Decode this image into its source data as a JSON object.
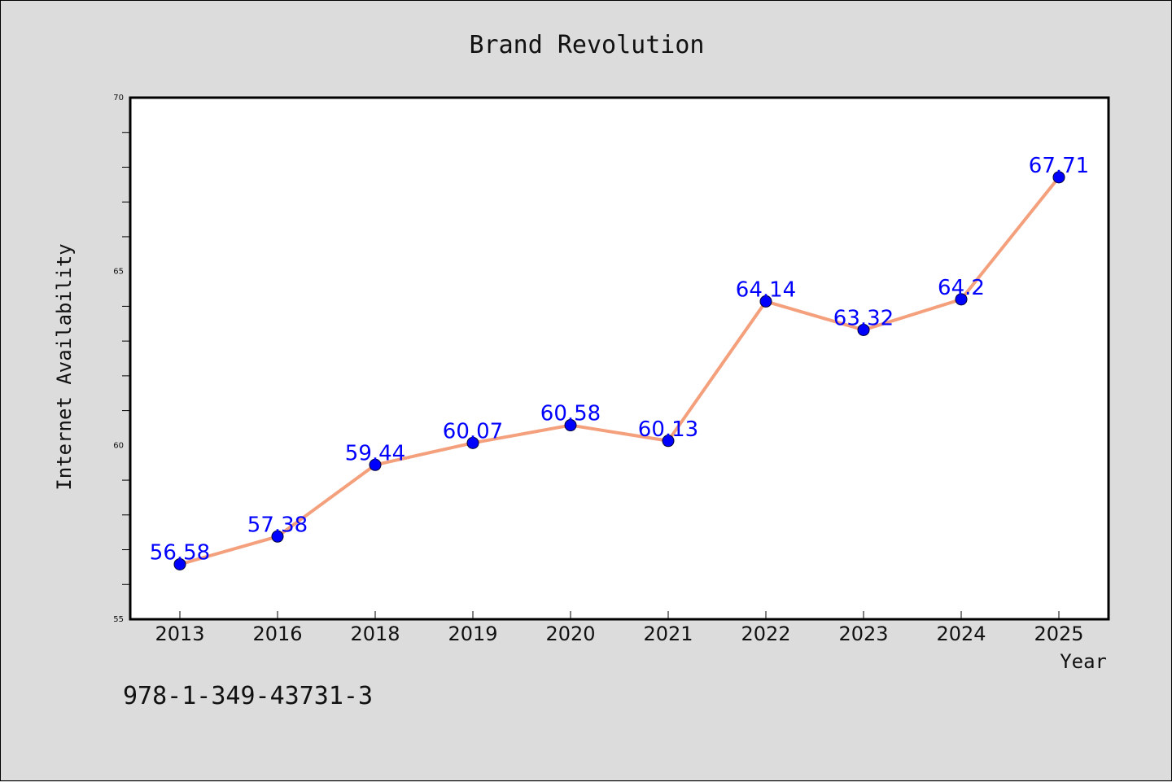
{
  "chart_data": {
    "type": "line",
    "title": "Brand Revolution",
    "xlabel": "Year",
    "ylabel": "Internet Availability",
    "categories": [
      "2013",
      "2016",
      "2018",
      "2019",
      "2020",
      "2021",
      "2022",
      "2023",
      "2024",
      "2025"
    ],
    "series": [
      {
        "values": [
          56.58,
          57.38,
          59.44,
          60.07,
          60.58,
          60.13,
          64.14,
          63.32,
          64.2,
          67.71
        ],
        "line_color": "#f4a07c",
        "marker_color": "#0000ff"
      }
    ],
    "data_labels": [
      "56.58",
      "57.38",
      "59.44",
      "60.07",
      "60.58",
      "60.13",
      "64.14",
      "63.32",
      "64.2",
      "67.71"
    ],
    "ylim": [
      55,
      70
    ],
    "yticks": [
      "55",
      "60",
      "65",
      "70"
    ],
    "grid": false,
    "legend": "none"
  },
  "footer": {
    "isbn": "978-1-349-43731-3"
  }
}
